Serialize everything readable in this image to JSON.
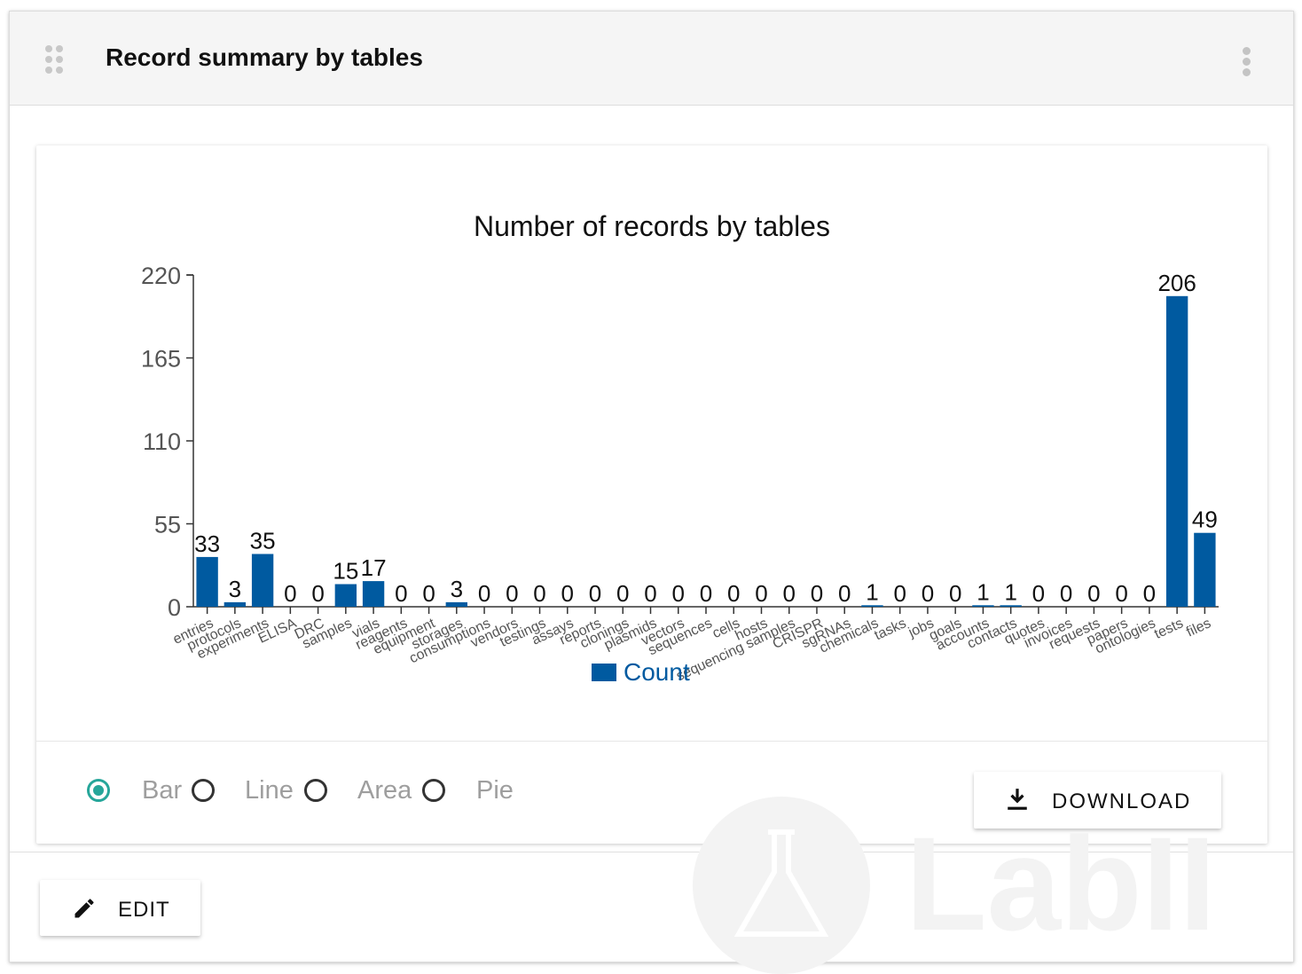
{
  "widget": {
    "title": "Record summary by tables",
    "drag_icon": "drag-handle-icon",
    "menu_icon": "more-vertical-icon"
  },
  "chart_controls": {
    "options": [
      {
        "label": "Bar",
        "checked": true
      },
      {
        "label": "Line",
        "checked": false
      },
      {
        "label": "Area",
        "checked": false
      },
      {
        "label": "Pie",
        "checked": false
      }
    ],
    "download_label": "DOWNLOAD",
    "download_icon": "download-icon"
  },
  "footer": {
    "edit_label": "EDIT",
    "edit_icon": "pencil-icon"
  },
  "watermark": {
    "text": "LabII"
  },
  "colors": {
    "bar": "#005aa0",
    "accent": "#26a69a"
  },
  "chart_data": {
    "type": "bar",
    "title": "Number of records by tables",
    "categories": [
      "entries",
      "protocols",
      "experiments",
      "ELISA",
      "DRC",
      "samples",
      "vials",
      "reagents",
      "equipment",
      "storages",
      "consumptions",
      "vendors",
      "testings",
      "assays",
      "reports",
      "clonings",
      "plasmids",
      "vectors",
      "sequences",
      "cells",
      "hosts",
      "sequencing samples",
      "CRISPR",
      "sgRNAs",
      "chemicals",
      "tasks",
      "jobs",
      "goals",
      "accounts",
      "contacts",
      "quotes",
      "invoices",
      "requests",
      "papers",
      "ontologies",
      "tests",
      "files"
    ],
    "series": [
      {
        "name": "Count",
        "values": [
          33,
          3,
          35,
          0,
          0,
          15,
          17,
          0,
          0,
          3,
          0,
          0,
          0,
          0,
          0,
          0,
          0,
          0,
          0,
          0,
          0,
          0,
          0,
          0,
          1,
          0,
          0,
          0,
          1,
          1,
          0,
          0,
          0,
          0,
          0,
          206,
          49
        ]
      }
    ],
    "yticks": [
      0,
      55,
      110,
      165,
      220
    ],
    "ylim": [
      0,
      220
    ],
    "grid": false,
    "legend": "bottom-center"
  }
}
